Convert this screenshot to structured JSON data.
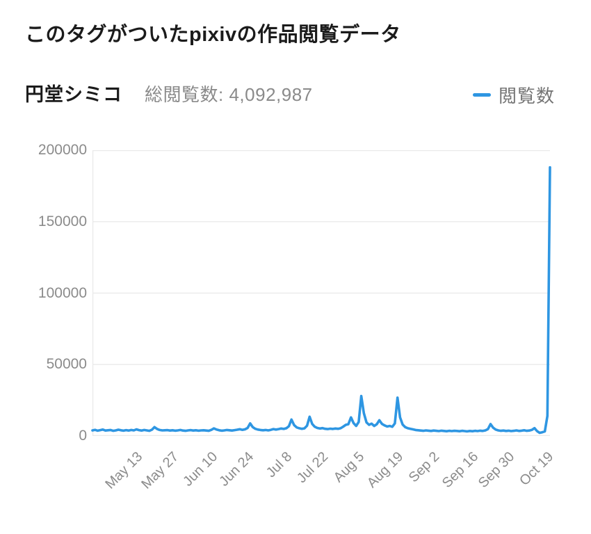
{
  "header": {
    "title": "このタグがついたpixivの作品閲覧データ",
    "tag_name": "円堂シミコ",
    "total_views_label": "総閲覧数:",
    "total_views_value": "4,092,987",
    "legend": {
      "series_label": "閲覧数",
      "line_color": "#2e96e2"
    }
  },
  "chart_data": {
    "type": "line",
    "series_name": "閲覧数",
    "line_color": "#2e96e2",
    "grid_color": "#e9e9e9",
    "tick_label_color": "#8b8b8b",
    "legend_position": "top-right",
    "grid": "horizontal-only",
    "ylim": [
      0,
      200000
    ],
    "y_ticks": [
      0,
      50000,
      100000,
      150000,
      200000
    ],
    "y_tick_labels": [
      "0",
      "50000",
      "100000",
      "150000",
      "200000"
    ],
    "x_tick_labels": [
      "May 13",
      "May 27",
      "Jun 10",
      "Jun 24",
      "Jul 8",
      "Jul 22",
      "Aug 5",
      "Aug 19",
      "Sep 2",
      "Sep 16",
      "Sep 30",
      "Oct 19"
    ],
    "x_tick_indices": [
      15,
      29,
      44,
      58,
      73,
      87,
      101,
      116,
      130,
      145,
      159,
      174
    ],
    "values": [
      3900,
      4300,
      3700,
      4100,
      4500,
      3800,
      4000,
      4200,
      3600,
      3900,
      4400,
      4000,
      3700,
      4100,
      3800,
      4200,
      3900,
      4600,
      4100,
      3800,
      4200,
      3900,
      3600,
      4400,
      6200,
      4900,
      4200,
      3900,
      4000,
      4100,
      3800,
      4000,
      3700,
      3900,
      4200,
      3800,
      3600,
      3900,
      4100,
      3800,
      4000,
      3700,
      3900,
      4000,
      3800,
      3600,
      4300,
      5300,
      4500,
      4000,
      3700,
      3900,
      4200,
      4000,
      3800,
      4100,
      4400,
      4700,
      4300,
      4600,
      5600,
      8800,
      6200,
      5000,
      4500,
      4200,
      4000,
      4200,
      3900,
      4300,
      4800,
      4500,
      4800,
      5200,
      4900,
      5400,
      6800,
      11500,
      7600,
      6000,
      5400,
      5000,
      5300,
      7200,
      13500,
      8400,
      6400,
      5600,
      5200,
      5500,
      5000,
      4800,
      5100,
      4900,
      5200,
      5000,
      5400,
      6500,
      7800,
      8200,
      13000,
      9000,
      7000,
      9800,
      28000,
      16000,
      9500,
      7800,
      8600,
      7000,
      8200,
      11000,
      8400,
      7400,
      6600,
      7000,
      6400,
      8800,
      26800,
      13000,
      8000,
      6200,
      5400,
      5000,
      4600,
      4200,
      4000,
      3800,
      3600,
      3900,
      3700,
      3500,
      3800,
      3600,
      3400,
      3700,
      3500,
      3300,
      3600,
      3400,
      3600,
      3500,
      3300,
      3600,
      3400,
      3200,
      3500,
      3300,
      3600,
      3400,
      3700,
      3500,
      3900,
      4800,
      8300,
      5800,
      4500,
      3900,
      3600,
      3800,
      3500,
      3700,
      3400,
      3600,
      3900,
      3500,
      3700,
      4000,
      3600,
      3800,
      4300,
      5500,
      3400,
      2200,
      2600,
      3200,
      14000,
      188000
    ]
  }
}
